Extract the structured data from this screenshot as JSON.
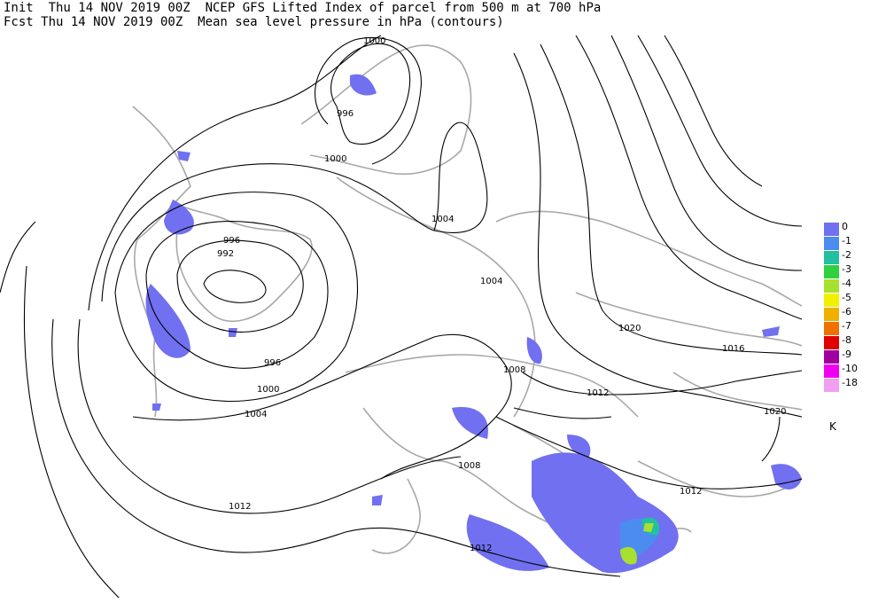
{
  "header": {
    "line1": "Init  Thu 14 NOV 2019 00Z  NCEP GFS Lifted Index of parcel from 500 m at 700 hPa",
    "line2": "Fcst Thu 14 NOV 2019 00Z  Mean sea level pressure in hPa (contours)"
  },
  "legend": {
    "unit": "K",
    "entries": [
      {
        "label": "0",
        "color": "#7070f0"
      },
      {
        "label": "-1",
        "color": "#4a8cf0"
      },
      {
        "label": "-2",
        "color": "#20c0a0"
      },
      {
        "label": "-3",
        "color": "#30d040"
      },
      {
        "label": "-4",
        "color": "#a8e030"
      },
      {
        "label": "-5",
        "color": "#f0f000"
      },
      {
        "label": "-6",
        "color": "#f0b000"
      },
      {
        "label": "-7",
        "color": "#f07000"
      },
      {
        "label": "-8",
        "color": "#e00000"
      },
      {
        "label": "-9",
        "color": "#a000a0"
      },
      {
        "label": "-10",
        "color": "#f000f0"
      },
      {
        "label": "-18",
        "color": "#f0a0f0"
      }
    ]
  },
  "contour_labels": {
    "c1": "1000",
    "c2": "996",
    "c3": "1000",
    "c4": "1004",
    "c5": "996",
    "c6": "992",
    "c7": "1004",
    "c8": "1020",
    "c9": "1016",
    "c10": "1008",
    "c11": "1012",
    "c12": "996",
    "c13": "1000",
    "c14": "1004",
    "c15": "1020",
    "c16": "1008",
    "c17": "1012",
    "c18": "1012",
    "c19": "1012"
  }
}
